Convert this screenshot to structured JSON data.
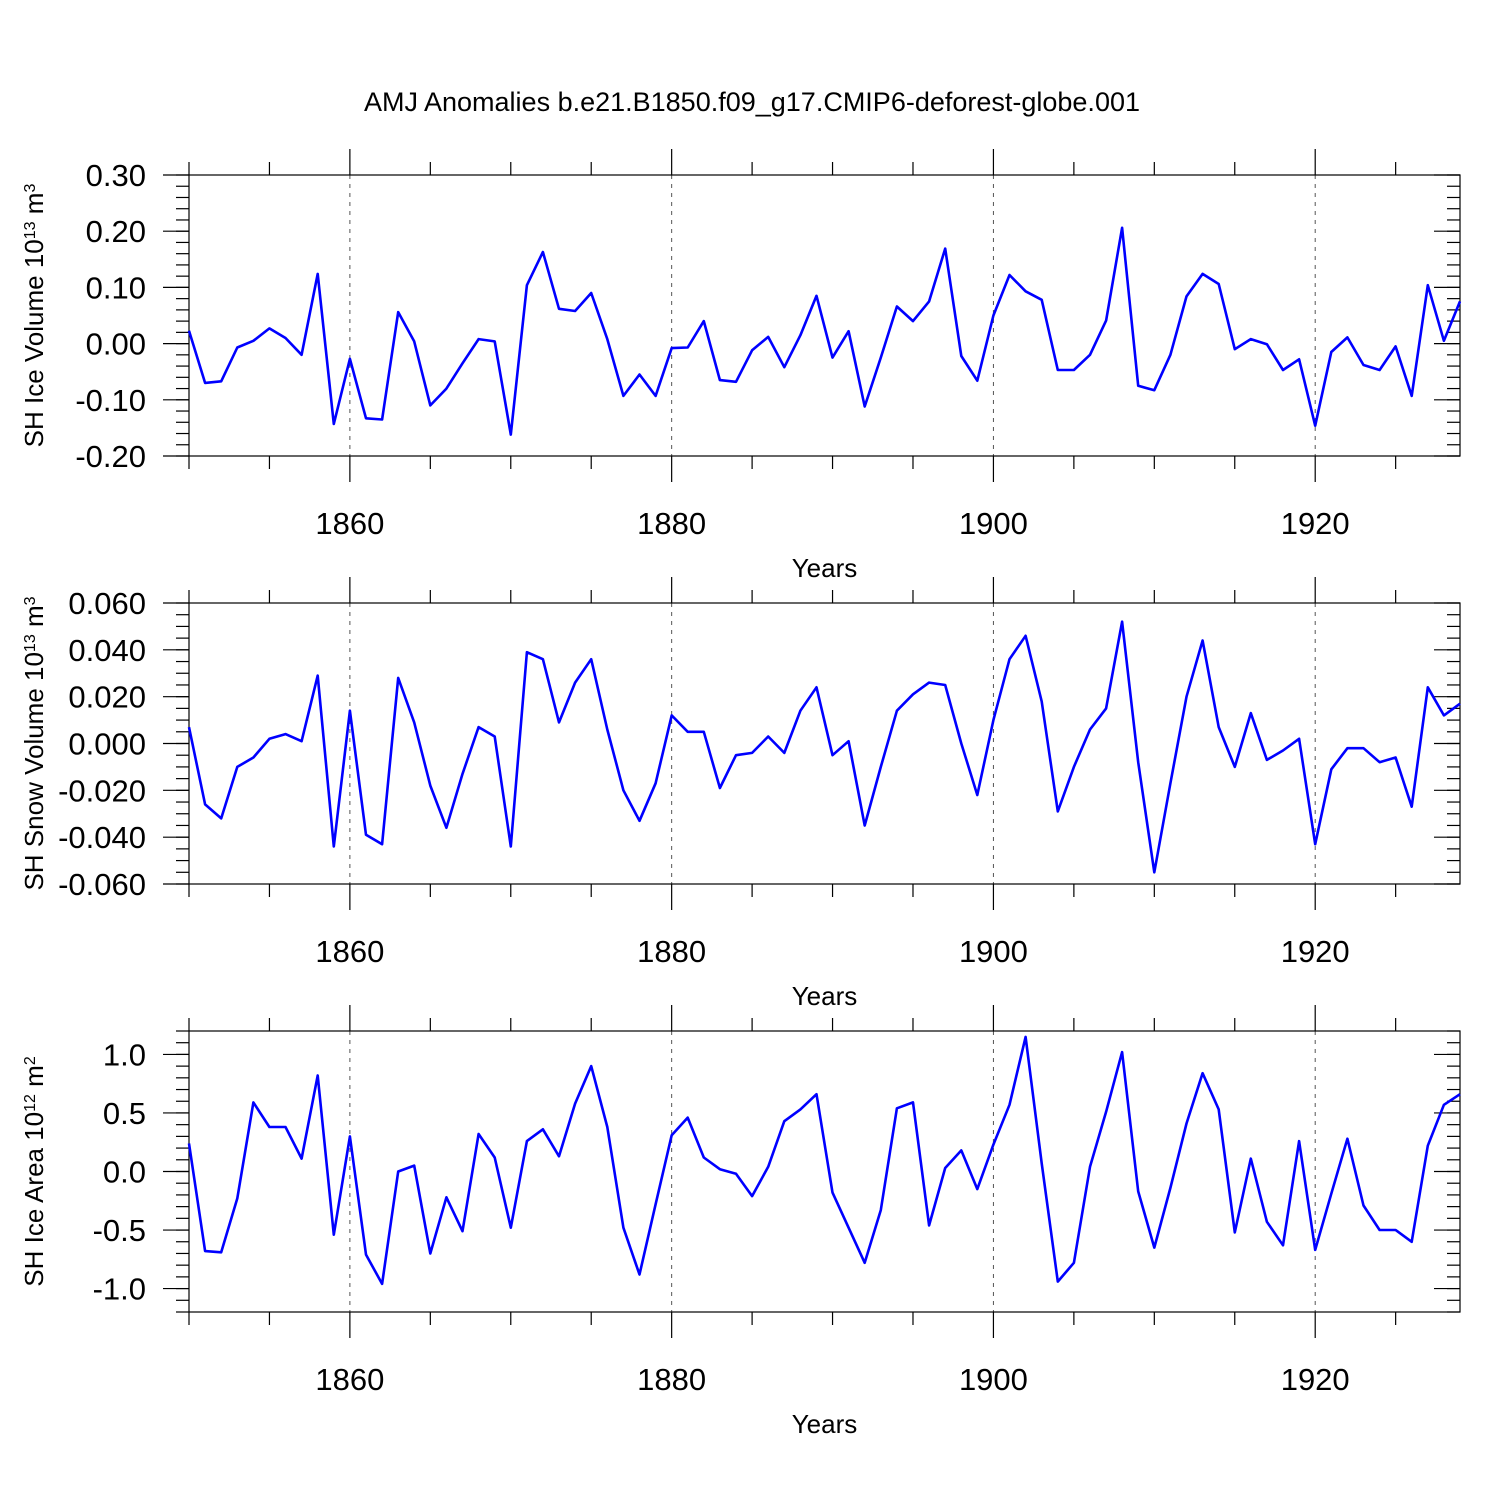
{
  "figure": {
    "title": "AMJ Anomalies b.e21.B1850.f09_g17.CMIP6-deforest-globe.001"
  },
  "chart_data": [
    {
      "type": "line",
      "xlabel": "Years",
      "ylabel_main": "SH Ice Volume 10",
      "ylabel_exp": "13",
      "ylabel_unit": " m",
      "ylabel_unit_exp": "3",
      "xlim": [
        1850,
        1929
      ],
      "ylim": [
        -0.2,
        0.3
      ],
      "x_ticks": [
        1860,
        1880,
        1900,
        1920
      ],
      "y_ticks": [
        -0.2,
        -0.1,
        0.0,
        0.1,
        0.2,
        0.3
      ],
      "y_tick_labels": [
        "-0.20",
        "-0.10",
        "0.00",
        "0.10",
        "0.20",
        "0.30"
      ],
      "y_minor_step": 0.02,
      "grid": "dashed vertical at x ticks",
      "color": "#0000ff",
      "x_start": 1850,
      "values": [
        0.023,
        -0.07,
        -0.067,
        -0.007,
        0.005,
        0.027,
        0.01,
        -0.02,
        0.124,
        -0.143,
        -0.027,
        -0.133,
        -0.135,
        0.056,
        0.004,
        -0.11,
        -0.08,
        -0.035,
        0.008,
        0.004,
        -0.162,
        0.104,
        0.163,
        0.062,
        0.058,
        0.09,
        0.008,
        -0.093,
        -0.055,
        -0.093,
        -0.008,
        -0.007,
        0.04,
        -0.065,
        -0.068,
        -0.012,
        0.012,
        -0.042,
        0.015,
        0.085,
        -0.025,
        0.022,
        -0.112,
        -0.025,
        0.066,
        0.04,
        0.075,
        0.169,
        -0.022,
        -0.066,
        0.05,
        0.122,
        0.093,
        0.078,
        -0.047,
        -0.047,
        -0.02,
        0.041,
        0.206,
        -0.075,
        -0.083,
        -0.02,
        0.084,
        0.124,
        0.106,
        -0.01,
        0.008,
        -0.001,
        -0.047,
        -0.028,
        -0.146,
        -0.015,
        0.011,
        -0.038,
        -0.047,
        -0.005,
        -0.093,
        0.104,
        0.005,
        0.075
      ]
    },
    {
      "type": "line",
      "xlabel": "Years",
      "ylabel_main": "SH Snow Volume 10",
      "ylabel_exp": "13",
      "ylabel_unit": " m",
      "ylabel_unit_exp": "3",
      "xlim": [
        1850,
        1929
      ],
      "ylim": [
        -0.06,
        0.06
      ],
      "x_ticks": [
        1860,
        1880,
        1900,
        1920
      ],
      "y_ticks": [
        -0.06,
        -0.04,
        -0.02,
        0.0,
        0.02,
        0.04,
        0.06
      ],
      "y_tick_labels": [
        "-0.060",
        "-0.040",
        "-0.020",
        "0.000",
        "0.020",
        "0.040",
        "0.060"
      ],
      "y_minor_step": 0.005,
      "grid": "dashed vertical at x ticks",
      "color": "#0000ff",
      "x_start": 1850,
      "values": [
        0.007,
        -0.026,
        -0.032,
        -0.01,
        -0.006,
        0.002,
        0.004,
        0.001,
        0.029,
        -0.044,
        0.014,
        -0.039,
        -0.043,
        0.028,
        0.009,
        -0.018,
        -0.036,
        -0.013,
        0.007,
        0.003,
        -0.044,
        0.039,
        0.036,
        0.009,
        0.026,
        0.036,
        0.006,
        -0.02,
        -0.033,
        -0.017,
        0.012,
        0.005,
        0.005,
        -0.019,
        -0.005,
        -0.004,
        0.003,
        -0.004,
        0.014,
        0.024,
        -0.005,
        0.001,
        -0.035,
        -0.01,
        0.014,
        0.021,
        0.026,
        0.025,
        0.0,
        -0.022,
        0.01,
        0.036,
        0.046,
        0.018,
        -0.029,
        -0.01,
        0.006,
        0.015,
        0.052,
        -0.008,
        -0.055,
        -0.017,
        0.02,
        0.044,
        0.007,
        -0.01,
        0.013,
        -0.007,
        -0.003,
        0.002,
        -0.043,
        -0.011,
        -0.002,
        -0.002,
        -0.008,
        -0.006,
        -0.027,
        0.024,
        0.012,
        0.017
      ]
    },
    {
      "type": "line",
      "xlabel": "Years",
      "ylabel_main": "SH Ice Area 10",
      "ylabel_exp": "12",
      "ylabel_unit": " m",
      "ylabel_unit_exp": "2",
      "xlim": [
        1850,
        1929
      ],
      "ylim": [
        -1.2,
        1.2
      ],
      "x_ticks": [
        1860,
        1880,
        1900,
        1920
      ],
      "y_ticks": [
        -1.0,
        -0.5,
        0.0,
        0.5,
        1.0
      ],
      "y_tick_labels": [
        "-1.0",
        "-0.5",
        "0.0",
        "0.5",
        "1.0"
      ],
      "y_minor_step": 0.1,
      "grid": "dashed vertical at x ticks",
      "color": "#0000ff",
      "x_start": 1850,
      "values": [
        0.24,
        -0.68,
        -0.69,
        -0.23,
        0.59,
        0.38,
        0.38,
        0.11,
        0.82,
        -0.54,
        0.3,
        -0.71,
        -0.96,
        0.0,
        0.05,
        -0.7,
        -0.22,
        -0.51,
        0.32,
        0.12,
        -0.48,
        0.26,
        0.36,
        0.13,
        0.58,
        0.9,
        0.38,
        -0.48,
        -0.88,
        -0.28,
        0.31,
        0.46,
        0.12,
        0.02,
        -0.02,
        -0.21,
        0.04,
        0.43,
        0.53,
        0.66,
        -0.18,
        -0.48,
        -0.78,
        -0.33,
        0.54,
        0.59,
        -0.46,
        0.03,
        0.18,
        -0.15,
        0.23,
        0.57,
        1.15,
        0.07,
        -0.94,
        -0.78,
        0.04,
        0.51,
        1.02,
        -0.17,
        -0.65,
        -0.14,
        0.41,
        0.84,
        0.53,
        -0.52,
        0.11,
        -0.43,
        -0.63,
        0.26,
        -0.67,
        -0.19,
        0.28,
        -0.29,
        -0.5,
        -0.5,
        -0.6,
        0.22,
        0.57,
        0.66
      ]
    }
  ]
}
